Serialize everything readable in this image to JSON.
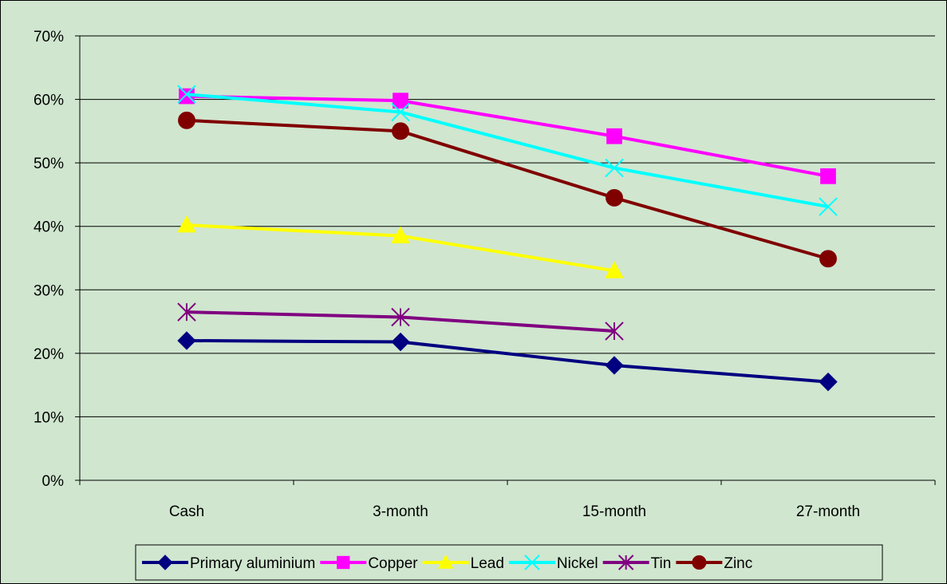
{
  "chart_data": {
    "type": "line",
    "title": "",
    "xlabel": "",
    "ylabel": "",
    "categories": [
      "Cash",
      "3-month",
      "15-month",
      "27-month"
    ],
    "ylim": [
      0,
      0.7
    ],
    "y_ticks": [
      0,
      0.1,
      0.2,
      0.3,
      0.4,
      0.5,
      0.6,
      0.7
    ],
    "y_tick_labels": [
      "0%",
      "10%",
      "20%",
      "30%",
      "40%",
      "50%",
      "60%",
      "70%"
    ],
    "grid": "horizontal",
    "legend_position": "bottom",
    "series": [
      {
        "name": "Primary aluminium",
        "values": [
          0.22,
          0.218,
          0.181,
          0.155
        ],
        "color": "#000080",
        "marker": "diamond"
      },
      {
        "name": "Copper",
        "values": [
          0.605,
          0.598,
          0.542,
          0.479
        ],
        "color": "#ff00ff",
        "marker": "square"
      },
      {
        "name": "Lead",
        "values": [
          0.402,
          0.385,
          0.33,
          null
        ],
        "color": "#ffff00",
        "marker": "triangle"
      },
      {
        "name": "Nickel",
        "values": [
          0.608,
          0.58,
          0.492,
          0.431
        ],
        "color": "#00ffff",
        "marker": "x"
      },
      {
        "name": "Tin",
        "values": [
          0.265,
          0.257,
          0.235,
          null
        ],
        "color": "#800080",
        "marker": "star"
      },
      {
        "name": "Zinc",
        "values": [
          0.567,
          0.55,
          0.445,
          0.349
        ],
        "color": "#800000",
        "marker": "circle"
      }
    ]
  }
}
